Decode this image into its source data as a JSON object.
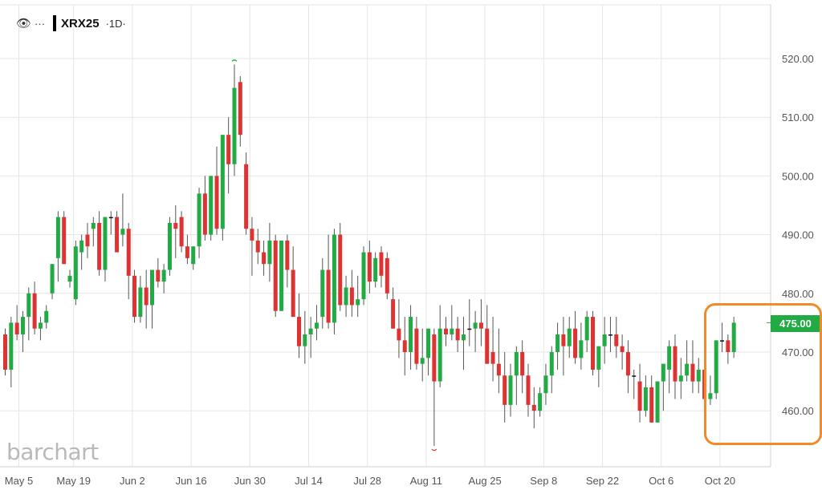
{
  "header": {
    "eye_icon": "eye-icon",
    "menu_icon": "dots-menu-icon",
    "symbol": "XRX25",
    "interval": "·1D·"
  },
  "logo": "barchart",
  "last_price_label": "475.00",
  "colors": {
    "up": "#22aa44",
    "down": "#dd3333",
    "highlight": "#f08a2a",
    "grid": "#e6e6e6",
    "axis_text": "#555555"
  },
  "chart_data": {
    "type": "candlestick",
    "title": "",
    "xlabel": "",
    "ylabel": "",
    "ylim": [
      452,
      526
    ],
    "grid": true,
    "y_ticks": [
      460,
      470,
      480,
      490,
      500,
      510,
      520
    ],
    "y_tick_labels": [
      "460.00",
      "470.00",
      "480.00",
      "490.00",
      "500.00",
      "510.00",
      "520.00"
    ],
    "x_tick_labels": [
      "May 5",
      "May 19",
      "Jun 2",
      "Jun 16",
      "Jun 30",
      "Jul 14",
      "Jul 28",
      "Aug 11",
      "Aug 25",
      "Sep 8",
      "Sep 22",
      "Oct 6",
      "Oct 20"
    ],
    "x_tick_index": [
      0,
      10,
      20,
      30,
      40,
      50,
      60,
      70,
      80,
      90,
      100,
      110,
      120
    ],
    "last_price": 475.0,
    "highlight_range": [
      117,
      126
    ],
    "series": [
      {
        "ohlc": [
          [
            473,
            474,
            466,
            467
          ],
          [
            467,
            476,
            464,
            475
          ],
          [
            475,
            478,
            472,
            473
          ],
          [
            473,
            477,
            470,
            476
          ],
          [
            476,
            481,
            472,
            480
          ],
          [
            480,
            482,
            473,
            474
          ],
          [
            474,
            476,
            472,
            475
          ],
          [
            475,
            478,
            474,
            477
          ],
          [
            480,
            485,
            479,
            485
          ],
          [
            486,
            494,
            482,
            493
          ],
          [
            493,
            494,
            485,
            485
          ],
          [
            482,
            484,
            481,
            483
          ],
          [
            479,
            489,
            478,
            488
          ],
          [
            487,
            490,
            484,
            489
          ],
          [
            490,
            492,
            486,
            488
          ],
          [
            491,
            493,
            488,
            492
          ],
          [
            492,
            494,
            483,
            484
          ],
          [
            484,
            493,
            482,
            493
          ],
          [
            493,
            494,
            490,
            493
          ],
          [
            493,
            494,
            487,
            487
          ],
          [
            490,
            497,
            488,
            491
          ],
          [
            491,
            492,
            479,
            483
          ],
          [
            483,
            484,
            475,
            476
          ],
          [
            476,
            483,
            475,
            481
          ],
          [
            481,
            484,
            474,
            478
          ],
          [
            478,
            484,
            474,
            484
          ],
          [
            484,
            486,
            481,
            482
          ],
          [
            482,
            485,
            480,
            484
          ],
          [
            484,
            493,
            483,
            492
          ],
          [
            492,
            495,
            486,
            491
          ],
          [
            493,
            494,
            487,
            488
          ],
          [
            488,
            490,
            485,
            486
          ],
          [
            485,
            488,
            484,
            488
          ],
          [
            488,
            498,
            486,
            497
          ],
          [
            497,
            500,
            489,
            490
          ],
          [
            490,
            500,
            489,
            500
          ],
          [
            500,
            505,
            490,
            491
          ],
          [
            491,
            507,
            489,
            507
          ],
          [
            507,
            510,
            497,
            502
          ],
          [
            502,
            519,
            500,
            515
          ],
          [
            516,
            517,
            505,
            507
          ],
          [
            502,
            504,
            490,
            491
          ],
          [
            491,
            493,
            483,
            489
          ],
          [
            489,
            491,
            485,
            487
          ],
          [
            487,
            489,
            483,
            485
          ],
          [
            485,
            492,
            482,
            489
          ],
          [
            489,
            490,
            476,
            477
          ],
          [
            477,
            489,
            477,
            489
          ],
          [
            489,
            490,
            481,
            484
          ],
          [
            484,
            488,
            476,
            476
          ],
          [
            476,
            480,
            469,
            471
          ],
          [
            471,
            477,
            468,
            473
          ],
          [
            473,
            476,
            469,
            474
          ],
          [
            474,
            478,
            472,
            475
          ],
          [
            476,
            486,
            474,
            484
          ],
          [
            484,
            490,
            474,
            475
          ],
          [
            475,
            491,
            473,
            490
          ],
          [
            490,
            492,
            477,
            478
          ],
          [
            478,
            483,
            476,
            481
          ],
          [
            481,
            484,
            476,
            478
          ],
          [
            478,
            483,
            476,
            479
          ],
          [
            479,
            488,
            478,
            487
          ],
          [
            487,
            489,
            480,
            482
          ],
          [
            482,
            487,
            481,
            486
          ],
          [
            487,
            488,
            481,
            483
          ],
          [
            486,
            487,
            479,
            480
          ],
          [
            479,
            481,
            474,
            474
          ],
          [
            474,
            479,
            469,
            472
          ],
          [
            472,
            476,
            466,
            470
          ],
          [
            470,
            478,
            467,
            476
          ],
          [
            474,
            476,
            467,
            468
          ],
          [
            468,
            474,
            465,
            469
          ],
          [
            469,
            474,
            466,
            474
          ],
          [
            473,
            474,
            454,
            465
          ],
          [
            465,
            478,
            464,
            474
          ],
          [
            474,
            476,
            471,
            473
          ],
          [
            473,
            478,
            472,
            474
          ],
          [
            474,
            476,
            470,
            472
          ],
          [
            472,
            476,
            467,
            473
          ],
          [
            474,
            479,
            471,
            474
          ],
          [
            474,
            477,
            470,
            475
          ],
          [
            475,
            479,
            471,
            474
          ],
          [
            474,
            478,
            468,
            468
          ],
          [
            470,
            476,
            465,
            468
          ],
          [
            468,
            474,
            463,
            466
          ],
          [
            466,
            470,
            458,
            461
          ],
          [
            461,
            468,
            459,
            466
          ],
          [
            466,
            471,
            461,
            470
          ],
          [
            470,
            472,
            463,
            466
          ],
          [
            466,
            468,
            459,
            461
          ],
          [
            461,
            464,
            457,
            460
          ],
          [
            460,
            464,
            459,
            463
          ],
          [
            463,
            468,
            461,
            466
          ],
          [
            466,
            471,
            463,
            470
          ],
          [
            470,
            475,
            467,
            473
          ],
          [
            473,
            476,
            466,
            471
          ],
          [
            471,
            476,
            469,
            474
          ],
          [
            474,
            477,
            468,
            469
          ],
          [
            469,
            475,
            467,
            472
          ],
          [
            472,
            477,
            470,
            476
          ],
          [
            476,
            477,
            466,
            467
          ],
          [
            467,
            471,
            464,
            471
          ],
          [
            471,
            476,
            468,
            473
          ],
          [
            473,
            476,
            470,
            473
          ],
          [
            473,
            476,
            469,
            471
          ],
          [
            471,
            473,
            467,
            470
          ],
          [
            470,
            472,
            463,
            466
          ],
          [
            466,
            467,
            462,
            466
          ],
          [
            465,
            468,
            458,
            460
          ],
          [
            460,
            466,
            459,
            464
          ],
          [
            464,
            466,
            458,
            458
          ],
          [
            458,
            465,
            458,
            465
          ],
          [
            465,
            468,
            460,
            468
          ],
          [
            467,
            472,
            463,
            471
          ],
          [
            471,
            473,
            462,
            465
          ],
          [
            465,
            469,
            462,
            466
          ],
          [
            466,
            472,
            465,
            468
          ],
          [
            468,
            472,
            463,
            465
          ],
          [
            465,
            469,
            463,
            467
          ],
          [
            467,
            469,
            461,
            462
          ],
          [
            462,
            466,
            461,
            463
          ],
          [
            463,
            472,
            462,
            472
          ],
          [
            472,
            475,
            470,
            472
          ],
          [
            472,
            473,
            468,
            470
          ],
          [
            470,
            476,
            469,
            475
          ]
        ]
      }
    ]
  }
}
